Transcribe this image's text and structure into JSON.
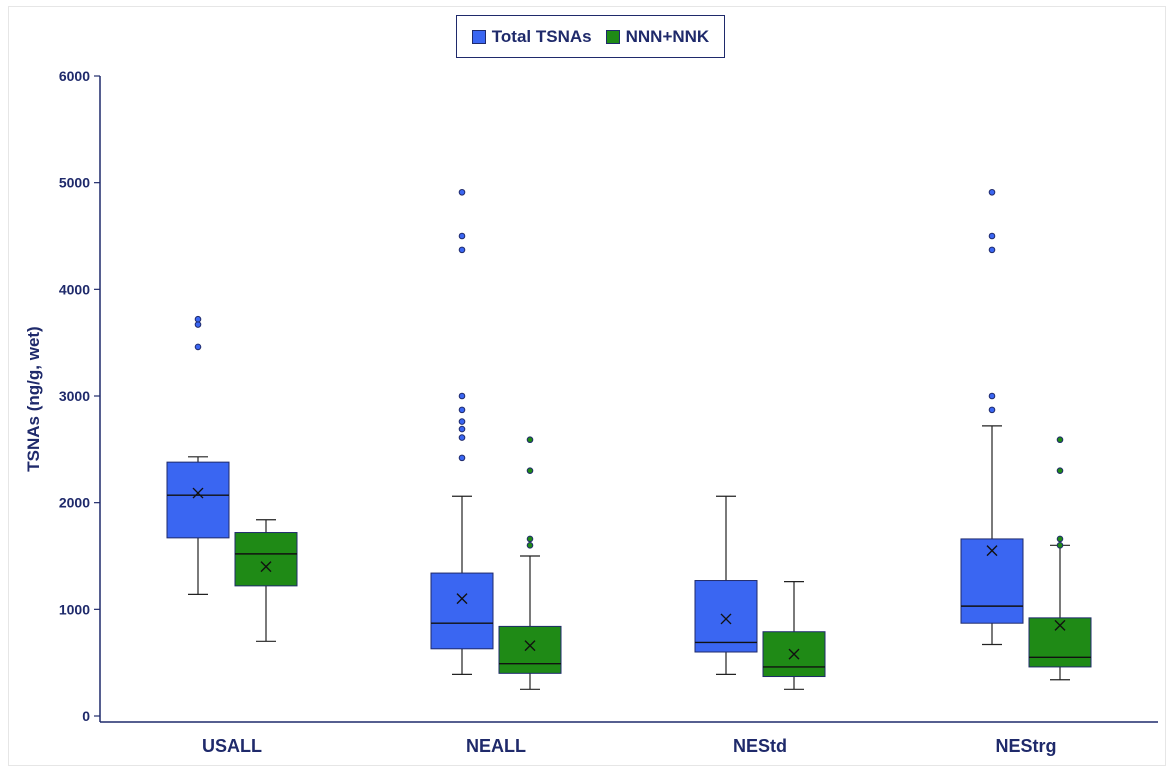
{
  "chart_data": {
    "type": "box",
    "ylabel": "TSNAs (ng/g, wet)",
    "xlabel": "",
    "ylim": [
      0,
      6000
    ],
    "yticks": [
      0,
      1000,
      2000,
      3000,
      4000,
      5000,
      6000
    ],
    "categories": [
      "USALL",
      "NEALL",
      "NEStd",
      "NEStrg"
    ],
    "legend_position": "top-center",
    "grid": false,
    "series": [
      {
        "name": "Total TSNAs",
        "color": "#3a66f2",
        "boxes": [
          {
            "category": "USALL",
            "whisker_low": 1140,
            "q1": 1670,
            "median": 2070,
            "q3": 2380,
            "whisker_high": 2430,
            "mean": 2090,
            "outliers": [
              3460,
              3670,
              3720
            ]
          },
          {
            "category": "NEALL",
            "whisker_low": 390,
            "q1": 630,
            "median": 870,
            "q3": 1340,
            "whisker_high": 2060,
            "mean": 1100,
            "outliers": [
              2420,
              2610,
              2690,
              2760,
              2870,
              3000,
              4370,
              4500,
              4910
            ]
          },
          {
            "category": "NEStd",
            "whisker_low": 390,
            "q1": 600,
            "median": 690,
            "q3": 1270,
            "whisker_high": 2060,
            "mean": 910,
            "outliers": []
          },
          {
            "category": "NEStrg",
            "whisker_low": 670,
            "q1": 870,
            "median": 1030,
            "q3": 1660,
            "whisker_high": 2720,
            "mean": 1550,
            "outliers": [
              2870,
              3000,
              4370,
              4500,
              4910
            ]
          }
        ]
      },
      {
        "name": "NNN+NNK",
        "color": "#1f8a16",
        "boxes": [
          {
            "category": "USALL",
            "whisker_low": 700,
            "q1": 1220,
            "median": 1520,
            "q3": 1720,
            "whisker_high": 1840,
            "mean": 1400,
            "outliers": []
          },
          {
            "category": "NEALL",
            "whisker_low": 250,
            "q1": 400,
            "median": 490,
            "q3": 840,
            "whisker_high": 1500,
            "mean": 660,
            "outliers": [
              1600,
              1660,
              2300,
              2590
            ]
          },
          {
            "category": "NEStd",
            "whisker_low": 250,
            "q1": 370,
            "median": 460,
            "q3": 790,
            "whisker_high": 1260,
            "mean": 580,
            "outliers": []
          },
          {
            "category": "NEStrg",
            "whisker_low": 340,
            "q1": 460,
            "median": 550,
            "q3": 920,
            "whisker_high": 1600,
            "mean": 850,
            "outliers": [
              1600,
              1660,
              2300,
              2590
            ]
          }
        ]
      }
    ]
  }
}
